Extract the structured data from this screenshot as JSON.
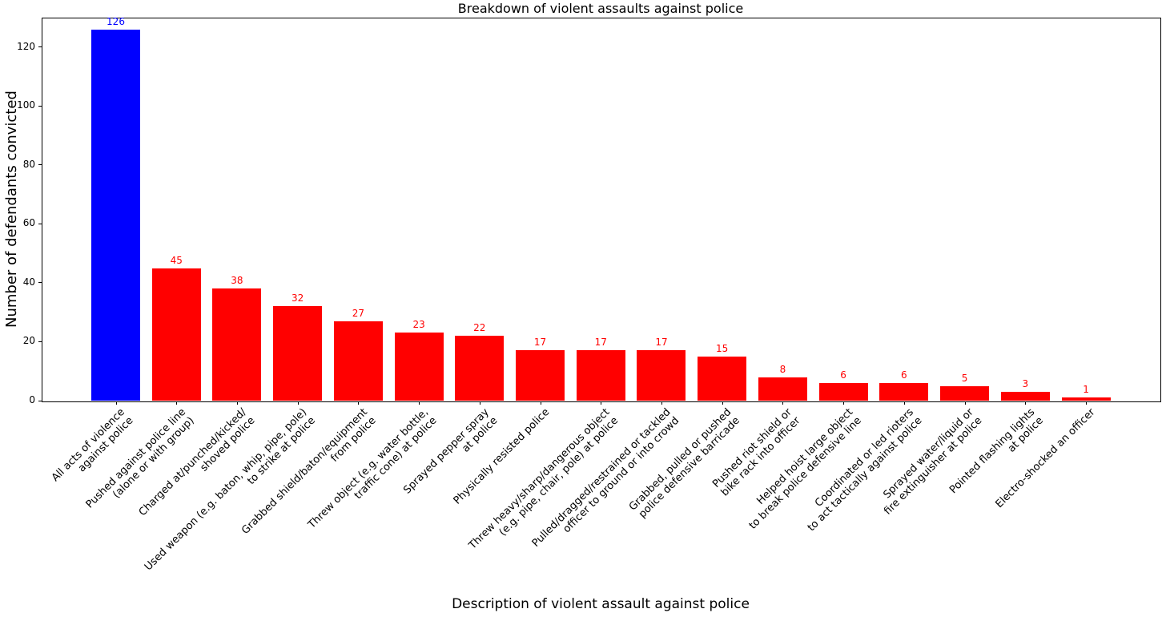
{
  "chart_data": {
    "type": "bar",
    "title": "Breakdown of violent assaults against police",
    "xlabel": "Description of violent assault against police",
    "ylabel": "Number of defendants convicted",
    "ylim": [
      0,
      130
    ],
    "yticks": [
      0,
      20,
      40,
      60,
      80,
      100,
      120
    ],
    "grid": false,
    "legend": null,
    "categories": [
      "All acts of violence\nagainst police",
      "Pushed against police line\n(alone or with group)",
      "Charged at/punched/kicked/\nshoved police",
      "Used weapon (e.g. baton, whip, pipe, pole)\nto strike at police",
      "Grabbed shield/baton/equipment\nfrom police",
      "Threw object (e.g. water bottle,\ntraffic cone) at police",
      "Sprayed pepper spray\nat police",
      "Physically resisted police",
      "Threw heavy/sharp/dangerous object\n(e.g. pipe, chair, pole) at police",
      "Pulled/dragged/restrained or tackled\nofficer to ground or into crowd",
      "Grabbed, pulled or pushed\npolice defensive barricade",
      "Pushed riot shield or\nbike rack into officer",
      "Helped hoist large object\nto break police defensive line",
      "Coordinated or led rioters\nto act tactically against police",
      "Sprayed water/liquid or\nfire extinguisher at police",
      "Pointed flashing lights\nat police",
      "Electro-shocked an officer"
    ],
    "values": [
      126,
      45,
      38,
      32,
      27,
      23,
      22,
      17,
      17,
      17,
      15,
      8,
      6,
      6,
      5,
      3,
      1
    ],
    "bar_colors": [
      "#0000ff",
      "#ff0000",
      "#ff0000",
      "#ff0000",
      "#ff0000",
      "#ff0000",
      "#ff0000",
      "#ff0000",
      "#ff0000",
      "#ff0000",
      "#ff0000",
      "#ff0000",
      "#ff0000",
      "#ff0000",
      "#ff0000",
      "#ff0000",
      "#ff0000"
    ]
  }
}
